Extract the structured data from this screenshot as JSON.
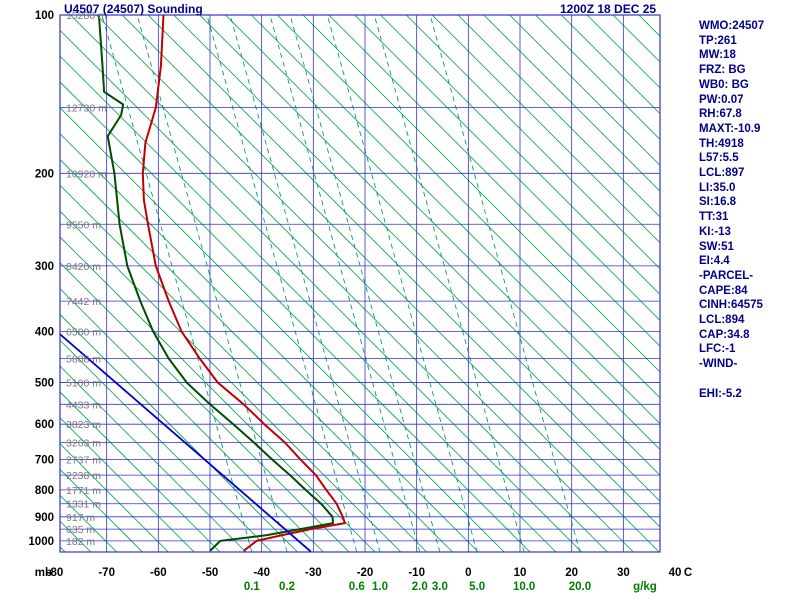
{
  "header": {
    "title": "U4507 (24507) Sounding",
    "datetime": "1200Z 18 DEC 25"
  },
  "stats_panel": {
    "lines": [
      "WMO:24507",
      "TP:261",
      "MW:18",
      "FRZ: BG",
      "WB0: BG",
      "PW:0.07",
      "RH:67.8",
      "MAXT:-10.9",
      "TH:4918",
      "L57:5.5",
      "LCL:897",
      "LI:35.0",
      "SI:16.8",
      "TT:31",
      "KI:-13",
      "SW:51",
      "EI:4.4",
      "-PARCEL-",
      "CAPE:84",
      "CINH:64575",
      "LCL:894",
      "CAP:34.8",
      "LFC:-1",
      "-WIND-",
      "",
      "EHI:-5.2"
    ]
  },
  "colors": {
    "grid": "#3333CC",
    "dry_adiabat": "#00A040",
    "mixing_ratio": "#00A070",
    "temperature": "#C00000",
    "dewpoint": "#004D00",
    "parcel": "#0000CC",
    "header_text": "#00008B",
    "axis_text": "#000000",
    "height_text": "#7A7A7A",
    "mixing_label": "#008000"
  },
  "chart_data": {
    "type": "line",
    "diagram": "stuve-sounding",
    "title": "U4507 (24507) Sounding",
    "datetime_label": "1200Z 18 DEC 25",
    "x_axis": {
      "unit": "C",
      "left_unit": "mb",
      "ticks": [
        -80,
        -70,
        -60,
        -50,
        -40,
        -30,
        -20,
        -10,
        0,
        10,
        20,
        30,
        40
      ],
      "range": [
        -81,
        46
      ]
    },
    "y_axis": {
      "unit": "mb",
      "scale": "log",
      "ticks": [
        100,
        200,
        300,
        400,
        500,
        600,
        700,
        800,
        900,
        1000
      ],
      "range": [
        100,
        1050
      ]
    },
    "isobar_lines_mb": [
      100,
      150,
      200,
      250,
      300,
      350,
      400,
      450,
      500,
      550,
      600,
      650,
      700,
      750,
      800,
      850,
      900,
      950,
      1000,
      1050
    ],
    "height_labels": {
      "suffix": " m",
      "pressures_mb": [
        100,
        150,
        200,
        250,
        300,
        350,
        400,
        450,
        500,
        550,
        600,
        650,
        700,
        750,
        800,
        850,
        900,
        950,
        1000
      ],
      "values_m": [
        15280,
        12730,
        10920,
        9550,
        8420,
        7442,
        6580,
        5808,
        5100,
        4433,
        3823,
        3263,
        2737,
        2238,
        1771,
        1331,
        917,
        635,
        182
      ]
    },
    "dry_adiabats": {
      "spacing_c": 5,
      "slope_deg": 45
    },
    "mixing_ratio": {
      "unit_label": "g/kg",
      "values_gkg": [
        "0.1",
        "0.2",
        "0.6",
        "1.0",
        "2.0",
        "3.0",
        "5.0",
        "10.0",
        "20.0"
      ],
      "bottom_temps_c": [
        -41.9,
        -35.1,
        -21.6,
        -17.1,
        -9.4,
        -5.5,
        1.7,
        10.8,
        21.6
      ],
      "top_lean_c": -29
    },
    "series": [
      {
        "name": "temperature",
        "color_key": "temperature",
        "pressure_mb": [
          100,
          125,
          150,
          175,
          200,
          225,
          250,
          300,
          350,
          400,
          450,
          500,
          550,
          600,
          650,
          700,
          750,
          800,
          850,
          900,
          925,
          950,
          975,
          1000,
          1045
        ],
        "temp_c": [
          -59,
          -59.5,
          -60.5,
          -62.5,
          -63,
          -62.8,
          -62,
          -60.5,
          -58,
          -55.5,
          -52,
          -48.5,
          -43.5,
          -39.5,
          -35.5,
          -32.5,
          -29.5,
          -27.5,
          -25.5,
          -24.3,
          -23.9,
          -30.5,
          -36,
          -41,
          -43.5
        ]
      },
      {
        "name": "dewpoint",
        "color_key": "dewpoint",
        "pressure_mb": [
          100,
          125,
          140,
          148,
          155,
          170,
          200,
          250,
          300,
          350,
          400,
          450,
          500,
          550,
          600,
          650,
          700,
          750,
          800,
          850,
          900,
          925,
          950,
          975,
          1000,
          1045
        ],
        "temp_c": [
          -71.5,
          -70.8,
          -70.5,
          -66.8,
          -67.2,
          -69.8,
          -68.5,
          -67.5,
          -66,
          -63.5,
          -61,
          -58,
          -54.5,
          -50,
          -45.5,
          -41.5,
          -38,
          -34.5,
          -31.5,
          -28.5,
          -26.3,
          -26.2,
          -32.5,
          -39,
          -48,
          -50
        ]
      },
      {
        "name": "parcel",
        "color_key": "parcel",
        "pressure_mb": [
          1048,
          405
        ],
        "temp_c": [
          -30.5,
          -79
        ]
      }
    ]
  }
}
